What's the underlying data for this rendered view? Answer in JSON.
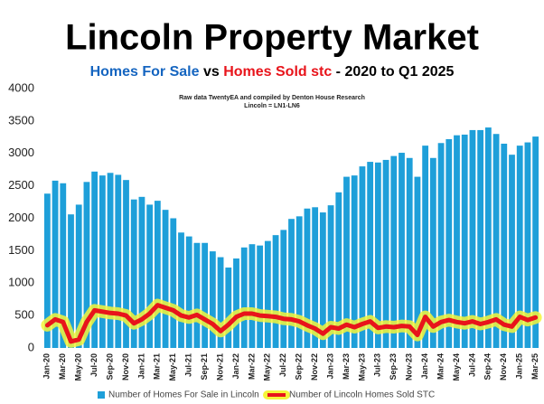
{
  "chart_data": {
    "type": "bar_line",
    "title": "Lincoln Property Market",
    "subtitle": [
      {
        "text": "Homes For Sale",
        "color": "#1565c0"
      },
      {
        "text": " vs ",
        "color": "#000000"
      },
      {
        "text": "Homes Sold stc",
        "color": "#e8141b"
      },
      {
        "text": " - 2020 to Q1 2025",
        "color": "#000000"
      }
    ],
    "notes": [
      "Raw data TwentyEA and compiled by Denton House Research",
      "Lincoln = LN1-LN6"
    ],
    "categories": [
      "Jan-20",
      null,
      "Mar-20",
      null,
      "May-20",
      null,
      "Jul-20",
      null,
      "Sep-20",
      null,
      "Nov-20",
      null,
      "Jan-21",
      null,
      "Mar-21",
      null,
      "May-21",
      null,
      "Jul-21",
      null,
      "Sep-21",
      null,
      "Nov-21",
      null,
      "Jan-22",
      null,
      "Mar-22",
      null,
      "May-22",
      null,
      "Jul-22",
      null,
      "Sep-22",
      null,
      "Nov-22",
      null,
      "Jan-23",
      null,
      "Mar-23",
      null,
      "May-23",
      null,
      "Jul-23",
      null,
      "Sep-23",
      null,
      "Nov-23",
      null,
      "Jan-24",
      null,
      "Mar-24",
      null,
      "May-24",
      null,
      "Jul-24",
      null,
      "Sep-24",
      null,
      "Nov-24",
      null,
      "Jan-25",
      null,
      "Mar-25"
    ],
    "series": [
      {
        "name": "Number of Homes For Sale in Lincoln",
        "kind": "bar",
        "color": "#1e9fd9",
        "values": [
          2380,
          2580,
          2540,
          2060,
          2210,
          2560,
          2720,
          2660,
          2700,
          2670,
          2590,
          2290,
          2330,
          2210,
          2270,
          2130,
          2000,
          1780,
          1720,
          1620,
          1620,
          1490,
          1400,
          1240,
          1380,
          1550,
          1600,
          1580,
          1650,
          1740,
          1820,
          1990,
          2030,
          2150,
          2170,
          2090,
          2200,
          2400,
          2640,
          2660,
          2800,
          2870,
          2860,
          2900,
          2960,
          3010,
          2930,
          2640,
          3120,
          2930,
          3160,
          3220,
          3280,
          3290,
          3360,
          3360,
          3400,
          3300,
          3150,
          2980,
          3120,
          3170,
          3260
        ]
      },
      {
        "name": "Number of Lincoln Homes Sold STC",
        "kind": "line",
        "color": "#e8141b",
        "values": [
          350,
          440,
          400,
          100,
          130,
          400,
          580,
          560,
          540,
          530,
          500,
          380,
          440,
          530,
          660,
          620,
          580,
          500,
          470,
          510,
          440,
          370,
          260,
          360,
          480,
          530,
          530,
          500,
          490,
          480,
          450,
          440,
          410,
          350,
          300,
          220,
          320,
          300,
          360,
          320,
          370,
          410,
          310,
          330,
          320,
          340,
          330,
          200,
          480,
          330,
          400,
          430,
          400,
          380,
          410,
          370,
          400,
          440,
          360,
          330,
          480,
          430,
          470
        ]
      }
    ],
    "ylim": [
      0,
      4000
    ],
    "yticks": [
      0,
      500,
      1000,
      1500,
      2000,
      2500,
      3000,
      3500,
      4000
    ],
    "grid": false
  }
}
